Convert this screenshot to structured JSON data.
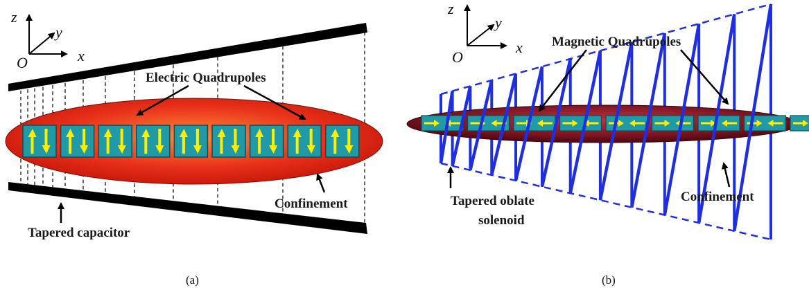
{
  "panel_a": {
    "axes": {
      "z": "z",
      "y": "y",
      "x": "x",
      "origin": "O"
    },
    "label_quadrupoles": "Electric Quadrupoles",
    "label_confinement": "Confinement",
    "label_capacitor": "Tapered capacitor",
    "caption": "(a)",
    "cell_count": 9
  },
  "panel_b": {
    "axes": {
      "z": "z",
      "y": "y",
      "x": "x",
      "origin": "O"
    },
    "label_quadrupoles": "Magnetic Quadrupoles",
    "label_confinement": "Confinement",
    "label_solenoid_line1": "Tapered oblate",
    "label_solenoid_line2": "solenoid",
    "caption": "(b)",
    "cell_count": 9
  },
  "colors": {
    "cell_fill": "#1f9aa6",
    "arrow": "#ffee00",
    "ellipse_a": "#e02010",
    "ellipse_b": "#6e0f18",
    "solenoid": "#1f2fe0",
    "capacitor": "#000000"
  }
}
